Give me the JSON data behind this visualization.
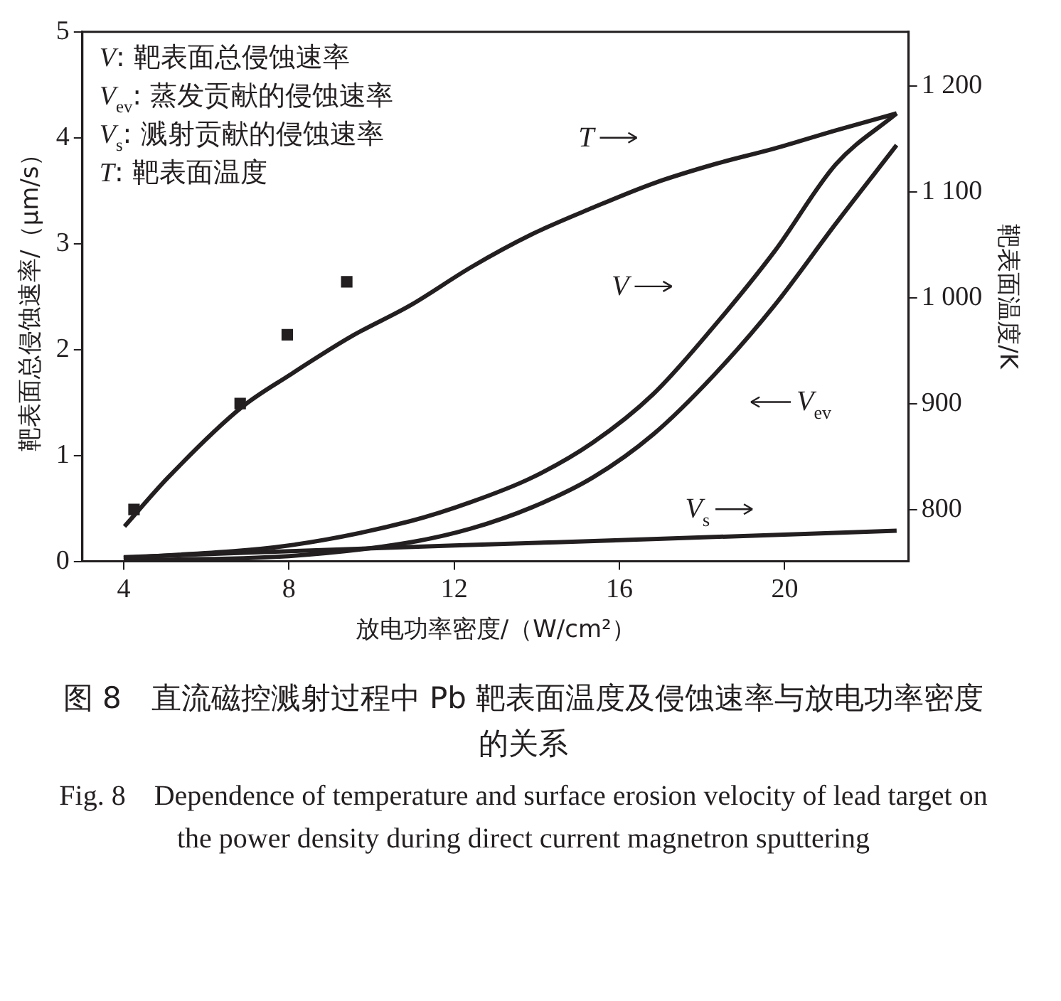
{
  "chart_data": {
    "type": "line",
    "title": "图 8　直流磁控溅射过程中 Pb 靶表面温度及侵蚀速率与放电功率密度的关系",
    "subtitle": "Fig. 8　Dependence of temperature and surface erosion velocity of lead target on the power density during direct current magnetron sputtering",
    "xlabel": "放电功率密度/（W/cm²）",
    "ylabel": "靶表面总侵蚀速率/（μm/s）",
    "y2label": "靶表面温度/K",
    "xlim": [
      3,
      23
    ],
    "xticks": [
      4,
      8,
      12,
      16,
      20
    ],
    "ylim": [
      0,
      5
    ],
    "yticks": [
      0,
      1,
      2,
      3,
      4,
      5
    ],
    "y2lim": [
      751,
      1251
    ],
    "y2ticks": [
      {
        "value": 800,
        "label": "800"
      },
      {
        "value": 900,
        "label": "900"
      },
      {
        "value": 1000,
        "label": "1 000"
      },
      {
        "value": 1100,
        "label": "1 100"
      },
      {
        "value": 1200,
        "label": "1 200"
      }
    ],
    "marker": "none",
    "line_style": "solid",
    "grid": false,
    "legend": "bottom right",
    "annotations": [
      "V: 靶表面总侵蚀速率",
      "V$_{ev}$: 蒸发贡献的侵蚀速率",
      "V$_{s}$: 溅射贡献的侵蚀速率",
      "T: 靶表面温度"
    ],
    "series": [
      {
        "name": "T",
        "color": "#231f20",
        "axis": "y2",
        "x": [
          4.02,
          5.07,
          6.84,
          8.02,
          9.49,
          10.95,
          12.42,
          13.89,
          15.36,
          16.83,
          18.3,
          19.77,
          21.24,
          22.71
        ],
        "values": [
          784,
          830,
          896,
          927,
          963,
          993,
          1029,
          1060,
          1085,
          1108,
          1126,
          1141,
          1158,
          1174
        ]
      },
      {
        "name": "V",
        "color": "#231f20",
        "x": [
          4,
          8,
          10.94,
          12.41,
          13.88,
          15.35,
          16.82,
          18.29,
          19.76,
          21.24,
          22.71
        ],
        "values": [
          0.03,
          0.15,
          0.38,
          0.56,
          0.79,
          1.12,
          1.58,
          2.22,
          2.93,
          3.75,
          4.23
        ]
      },
      {
        "name": "V$_{ev}$",
        "color": "#231f20",
        "x": [
          4,
          8,
          10.94,
          12.41,
          13.88,
          15.35,
          16.82,
          18.29,
          19.76,
          21.24,
          22.71
        ],
        "values": [
          0.01,
          0.05,
          0.18,
          0.31,
          0.51,
          0.79,
          1.2,
          1.76,
          2.42,
          3.19,
          3.93
        ]
      },
      {
        "name": "V$_{s}$",
        "color": "#231f20",
        "x": [
          4,
          12,
          16.8,
          22.71
        ],
        "values": [
          0.04,
          0.15,
          0.21,
          0.29
        ]
      },
      {
        "type": "scatter",
        "marker": "square",
        "color": "#231f20",
        "axis": "y2",
        "x": [
          4.25,
          6.82,
          7.96,
          9.4
        ],
        "values": [
          800,
          900,
          965,
          1015
        ]
      }
    ]
  }
}
